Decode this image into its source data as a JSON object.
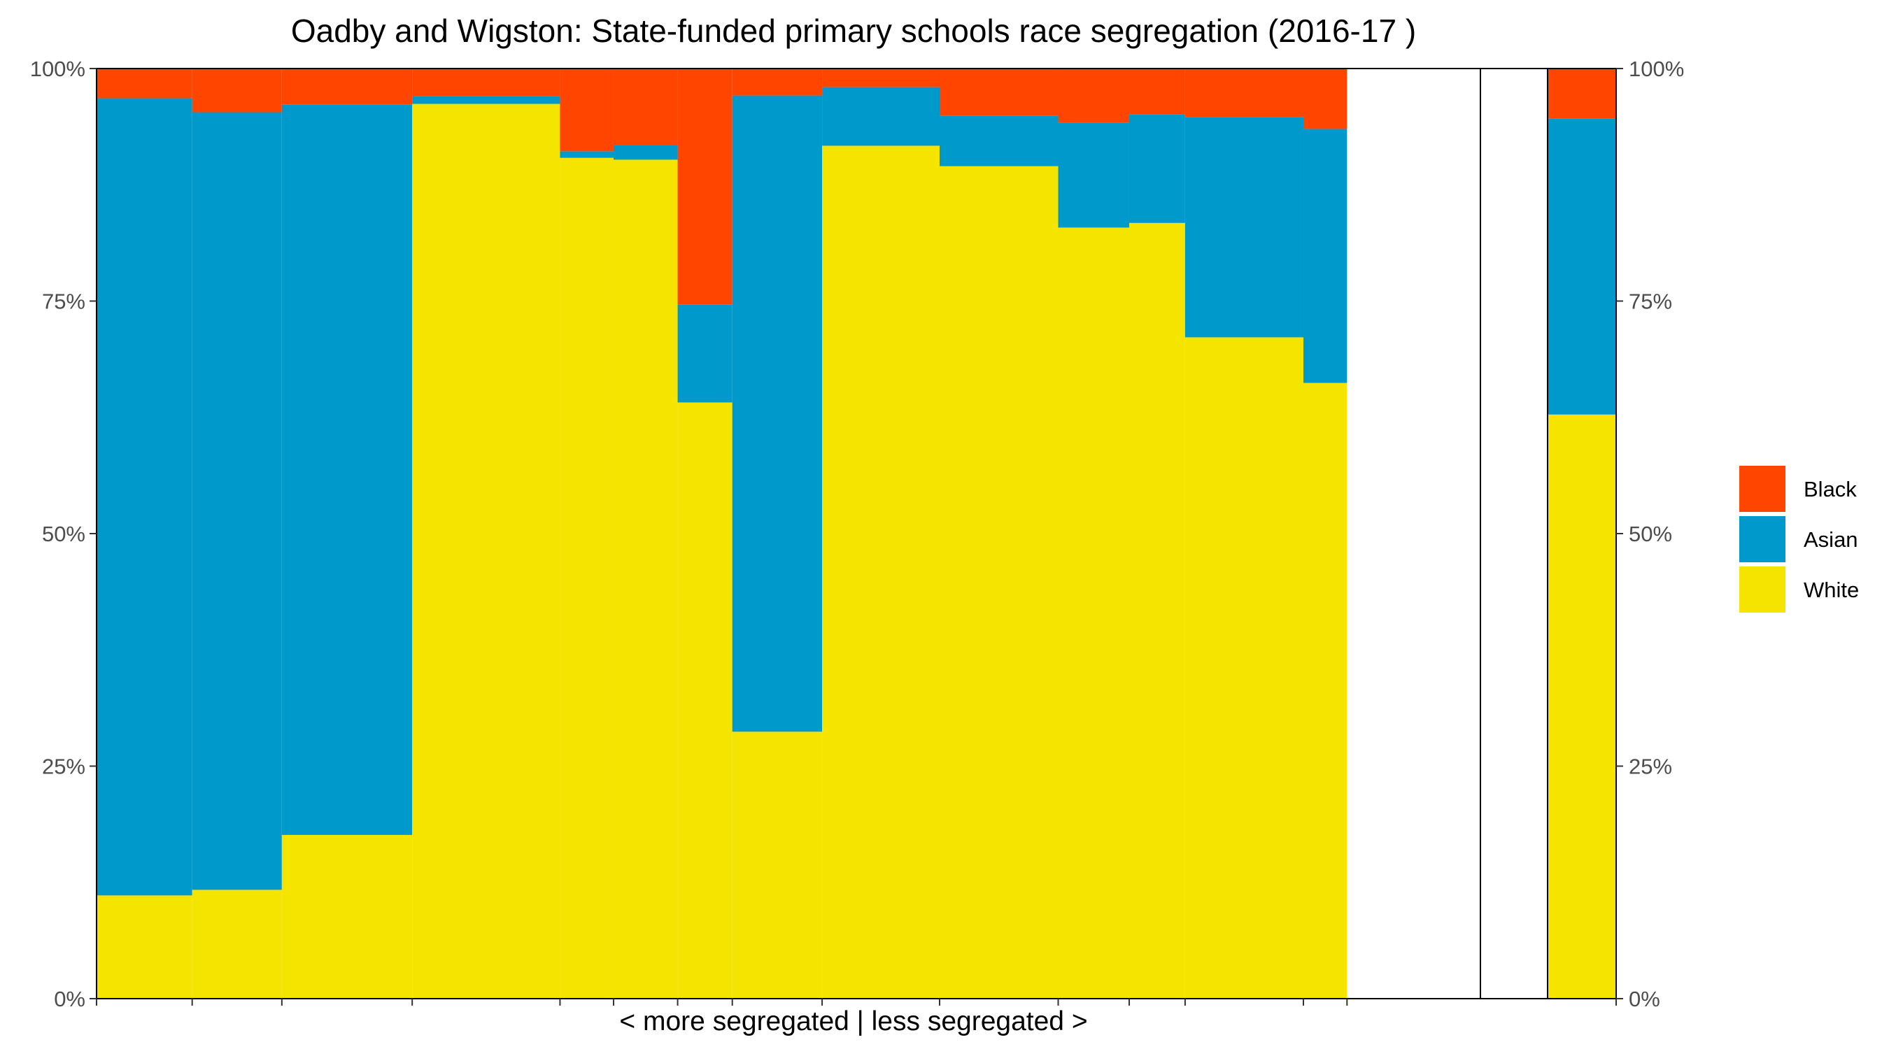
{
  "chart_data": {
    "type": "bar",
    "subtype": "variable-width stacked proportion (mosaic) bar",
    "title": "Oadby and Wigston: State-funded primary schools race segregation (2016-17 )",
    "xlabel": "< more segregated | less segregated >",
    "ylabel": "",
    "ylim": [
      0,
      1
    ],
    "y_ticks": [
      {
        "value": 0,
        "label": "0%"
      },
      {
        "value": 0.25,
        "label": "25%"
      },
      {
        "value": 0.5,
        "label": "50%"
      },
      {
        "value": 0.75,
        "label": "75%"
      },
      {
        "value": 1,
        "label": "100%"
      }
    ],
    "secondary_y_axis": true,
    "grid": false,
    "legend": {
      "position": "right",
      "entries": [
        {
          "name": "Black",
          "color": "#FF4500"
        },
        {
          "name": "Asian",
          "color": "#0099CC"
        },
        {
          "name": "White",
          "color": "#F5E400"
        }
      ]
    },
    "series_order_bottom_to_top": [
      "White",
      "Asian",
      "Black"
    ],
    "x_domain": [
      0,
      1
    ],
    "bars": [
      {
        "x_start": 0.0,
        "x_end": 0.0691,
        "White": 0.111,
        "Asian": 0.857,
        "Black": 0.032
      },
      {
        "x_start": 0.0691,
        "x_end": 0.1339,
        "White": 0.117,
        "Asian": 0.836,
        "Black": 0.047
      },
      {
        "x_start": 0.1339,
        "x_end": 0.2281,
        "White": 0.176,
        "Asian": 0.785,
        "Black": 0.039
      },
      {
        "x_start": 0.2281,
        "x_end": 0.3349,
        "White": 0.962,
        "Asian": 0.008,
        "Black": 0.03
      },
      {
        "x_start": 0.3349,
        "x_end": 0.3736,
        "White": 0.904,
        "Asian": 0.007,
        "Black": 0.089
      },
      {
        "x_start": 0.3736,
        "x_end": 0.4199,
        "White": 0.902,
        "Asian": 0.016,
        "Black": 0.082
      },
      {
        "x_start": 0.4199,
        "x_end": 0.4594,
        "White": 0.641,
        "Asian": 0.105,
        "Black": 0.254
      },
      {
        "x_start": 0.4594,
        "x_end": 0.5243,
        "White": 0.287,
        "Asian": 0.684,
        "Black": 0.029
      },
      {
        "x_start": 0.5243,
        "x_end": 0.6092,
        "White": 0.917,
        "Asian": 0.063,
        "Black": 0.02
      },
      {
        "x_start": 0.6092,
        "x_end": 0.6949,
        "White": 0.895,
        "Asian": 0.054,
        "Black": 0.051
      },
      {
        "x_start": 0.6949,
        "x_end": 0.7462,
        "White": 0.829,
        "Asian": 0.113,
        "Black": 0.058
      },
      {
        "x_start": 0.7462,
        "x_end": 0.7866,
        "White": 0.834,
        "Asian": 0.117,
        "Black": 0.049
      },
      {
        "x_start": 0.7866,
        "x_end": 0.8721,
        "White": 0.711,
        "Asian": 0.237,
        "Black": 0.052
      },
      {
        "x_start": 0.8721,
        "x_end": 0.9036,
        "White": 0.662,
        "Asian": 0.273,
        "Black": 0.065
      }
    ],
    "summary_bar": {
      "White": 0.628,
      "Asian": 0.318,
      "Black": 0.054
    }
  }
}
